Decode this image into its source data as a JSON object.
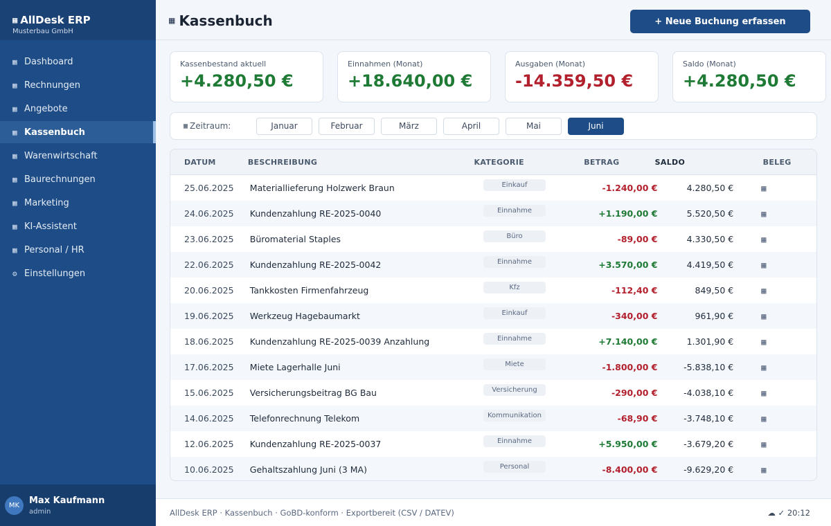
{
  "brand": {
    "title": "AllDesk ERP",
    "subtitle": "Musterbau GmbH",
    "icon": "grid-icon"
  },
  "sidebar": {
    "items": [
      {
        "label": "Dashboard",
        "icon": "▦"
      },
      {
        "label": "Rechnungen",
        "icon": "▦"
      },
      {
        "label": "Angebote",
        "icon": "▦"
      },
      {
        "label": "Kassenbuch",
        "icon": "▦",
        "active": true
      },
      {
        "label": "Warenwirtschaft",
        "icon": "▦"
      },
      {
        "label": "Baurechnungen",
        "icon": "▦"
      },
      {
        "label": "Marketing",
        "icon": "▦"
      },
      {
        "label": "KI-Assistent",
        "icon": "▦"
      },
      {
        "label": "Personal / HR",
        "icon": "▦"
      },
      {
        "label": "Einstellungen",
        "icon": "⚙"
      }
    ]
  },
  "user": {
    "initials": "MK",
    "name": "Max Kaufmann",
    "role": "admin"
  },
  "header": {
    "title": "Kassenbuch",
    "new_button": "+ Neue Buchung erfassen"
  },
  "cards": [
    {
      "label": "Kassenbestand aktuell",
      "value": "+4.280,50 €",
      "color": "#1e7a34"
    },
    {
      "label": "Einnahmen (Monat)",
      "value": "+18.640,00 €",
      "color": "#1e7a34"
    },
    {
      "label": "Ausgaben (Monat)",
      "value": "-14.359,50 €",
      "color": "#b3202d"
    },
    {
      "label": "Saldo (Monat)",
      "value": "+4.280,50 €",
      "color": "#1e7a34"
    }
  ],
  "filter": {
    "label": "Zeitraum:",
    "months": [
      "Januar",
      "Februar",
      "März",
      "April",
      "Mai",
      "Juni"
    ],
    "selected": "Juni"
  },
  "table": {
    "columns": [
      "DATUM",
      "BESCHREIBUNG",
      "KATEGORIE",
      "BETRAG",
      "SALDO",
      "BELEG"
    ],
    "rows": [
      {
        "date": "25.06.2025",
        "desc": "Materiallieferung Holzwerk Braun",
        "cat": "Einkauf",
        "amount": "-1.240,00 €",
        "saldo": "4.280,50 €"
      },
      {
        "date": "24.06.2025",
        "desc": "Kundenzahlung RE-2025-0040",
        "cat": "Einnahme",
        "amount": "+1.190,00 €",
        "saldo": "5.520,50 €"
      },
      {
        "date": "23.06.2025",
        "desc": "Büromaterial Staples",
        "cat": "Büro",
        "amount": "-89,00 €",
        "saldo": "4.330,50 €"
      },
      {
        "date": "22.06.2025",
        "desc": "Kundenzahlung RE-2025-0042",
        "cat": "Einnahme",
        "amount": "+3.570,00 €",
        "saldo": "4.419,50 €"
      },
      {
        "date": "20.06.2025",
        "desc": "Tankkosten Firmenfahrzeug",
        "cat": "Kfz",
        "amount": "-112,40 €",
        "saldo": "849,50 €"
      },
      {
        "date": "19.06.2025",
        "desc": "Werkzeug Hagebaumarkt",
        "cat": "Einkauf",
        "amount": "-340,00 €",
        "saldo": "961,90 €"
      },
      {
        "date": "18.06.2025",
        "desc": "Kundenzahlung RE-2025-0039 Anzahlung",
        "cat": "Einnahme",
        "amount": "+7.140,00 €",
        "saldo": "1.301,90 €"
      },
      {
        "date": "17.06.2025",
        "desc": "Miete Lagerhalle Juni",
        "cat": "Miete",
        "amount": "-1.800,00 €",
        "saldo": "-5.838,10 €"
      },
      {
        "date": "15.06.2025",
        "desc": "Versicherungsbeitrag BG Bau",
        "cat": "Versicherung",
        "amount": "-290,00 €",
        "saldo": "-4.038,10 €"
      },
      {
        "date": "14.06.2025",
        "desc": "Telefonrechnung Telekom",
        "cat": "Kommunikation",
        "amount": "-68,90 €",
        "saldo": "-3.748,10 €"
      },
      {
        "date": "12.06.2025",
        "desc": "Kundenzahlung RE-2025-0037",
        "cat": "Einnahme",
        "amount": "+5.950,00 €",
        "saldo": "-3.679,20 €"
      },
      {
        "date": "10.06.2025",
        "desc": "Gehaltszahlung Juni (3 MA)",
        "cat": "Personal",
        "amount": "-8.400,00 €",
        "saldo": "-9.629,20 €"
      }
    ],
    "positive_color": "#1e7a34",
    "negative_color": "#b3202d"
  },
  "footer": {
    "text": "AllDesk ERP · Kassenbuch · GoBD-konform · Exportbereit (CSV / DATEV)",
    "status": "☁ ✓ 20:12"
  }
}
